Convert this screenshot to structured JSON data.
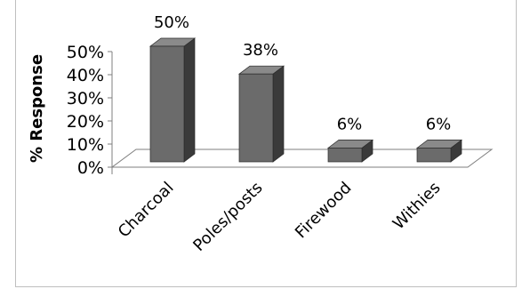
{
  "chart_data": {
    "type": "bar",
    "style": "3d-column",
    "categories": [
      "Charcoal",
      "Poles/posts",
      "Firewood",
      "Withies"
    ],
    "values": [
      50,
      38,
      6,
      6
    ],
    "data_labels": [
      "50%",
      "38%",
      "6%",
      "6%"
    ],
    "title": "",
    "xlabel": "",
    "ylabel": "% Response",
    "ylim": [
      0,
      50
    ],
    "yticks": [
      "0%",
      "10%",
      "20%",
      "30%",
      "40%",
      "50%"
    ],
    "grid": false,
    "legend": "none",
    "colors": {
      "bar_front": "#6b6b6b",
      "bar_side": "#3a3a3a",
      "bar_top": "#8a8a8a",
      "floor": "#ffffff",
      "floor_edge": "#7f7f7f"
    }
  }
}
